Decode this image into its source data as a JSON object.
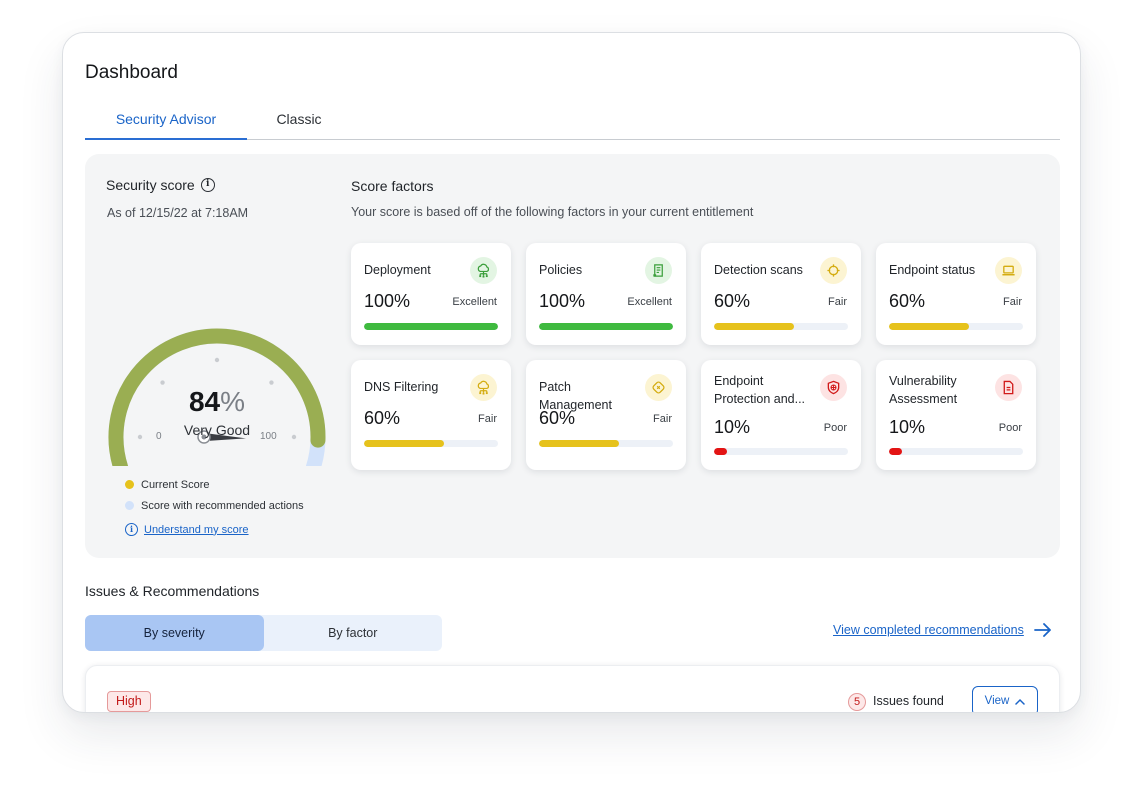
{
  "page": {
    "title": "Dashboard"
  },
  "tabs": [
    {
      "label": "Security Advisor",
      "active": true
    },
    {
      "label": "Classic",
      "active": false
    }
  ],
  "security_score": {
    "title": "Security score",
    "as_of": "As of 12/15/22 at 7:18AM",
    "score": "84",
    "score_value": 84,
    "recommended_value": 100,
    "unit": "%",
    "rating": "Very Good",
    "min_label": "0",
    "max_label": "100",
    "legend": [
      {
        "label": "Current Score",
        "color": "#e6c21c"
      },
      {
        "label": "Score with recommended actions",
        "color": "#d2e2fa"
      }
    ],
    "understand_link": "Understand my score",
    "colors": {
      "current_arc": "#9aae52",
      "recommended_arc": "#d2e2fa",
      "needle": "#3a3d42"
    }
  },
  "score_factors": {
    "title": "Score factors",
    "subtitle": "Your score is based off of the following factors in your current entitlement",
    "cards": [
      {
        "name": "Deployment",
        "percent": "100%",
        "value": 100,
        "rating": "Excellent",
        "color": "#3fba3f",
        "icon": "cloud-network-icon",
        "icon_bg": "#e3f5e3",
        "icon_fg": "#3a9e3a"
      },
      {
        "name": "Policies",
        "percent": "100%",
        "value": 100,
        "rating": "Excellent",
        "color": "#3fba3f",
        "icon": "policy-document-icon",
        "icon_bg": "#e3f5e3",
        "icon_fg": "#3a9e3a"
      },
      {
        "name": "Detection scans",
        "percent": "60%",
        "value": 60,
        "rating": "Fair",
        "color": "#e6c21c",
        "icon": "crosshair-icon",
        "icon_bg": "#fcf4d2",
        "icon_fg": "#d4ac10"
      },
      {
        "name": "Endpoint status",
        "percent": "60%",
        "value": 60,
        "rating": "Fair",
        "color": "#e6c21c",
        "icon": "laptop-icon",
        "icon_bg": "#fcf4d2",
        "icon_fg": "#d4ac10"
      },
      {
        "name": "DNS Filtering",
        "percent": "60%",
        "value": 60,
        "rating": "Fair",
        "color": "#e6c21c",
        "icon": "cloud-network-icon",
        "icon_bg": "#fcf4d2",
        "icon_fg": "#d4ac10"
      },
      {
        "name": "Patch Management",
        "percent": "60%",
        "value": 60,
        "rating": "Fair",
        "color": "#e6c21c",
        "icon": "patch-icon",
        "icon_bg": "#fcf4d2",
        "icon_fg": "#d4ac10"
      },
      {
        "name": "Endpoint Protection and...",
        "percent": "10%",
        "value": 10,
        "rating": "Poor",
        "color": "#e31414",
        "icon": "shield-icon",
        "icon_bg": "#fde3e3",
        "icon_fg": "#d11a1a"
      },
      {
        "name": "Vulnerability Assessment",
        "percent": "10%",
        "value": 10,
        "rating": "Poor",
        "color": "#e31414",
        "icon": "report-document-icon",
        "icon_bg": "#fde3e3",
        "icon_fg": "#d11a1a"
      }
    ]
  },
  "issues": {
    "title": "Issues & Recommendations",
    "segments": [
      {
        "label": "By severity",
        "active": true
      },
      {
        "label": "By factor",
        "active": false
      }
    ],
    "view_completed": "View completed recommendations",
    "groups": [
      {
        "severity": "High",
        "count": "5",
        "found_label": "Issues found",
        "view_label": "View"
      }
    ]
  }
}
